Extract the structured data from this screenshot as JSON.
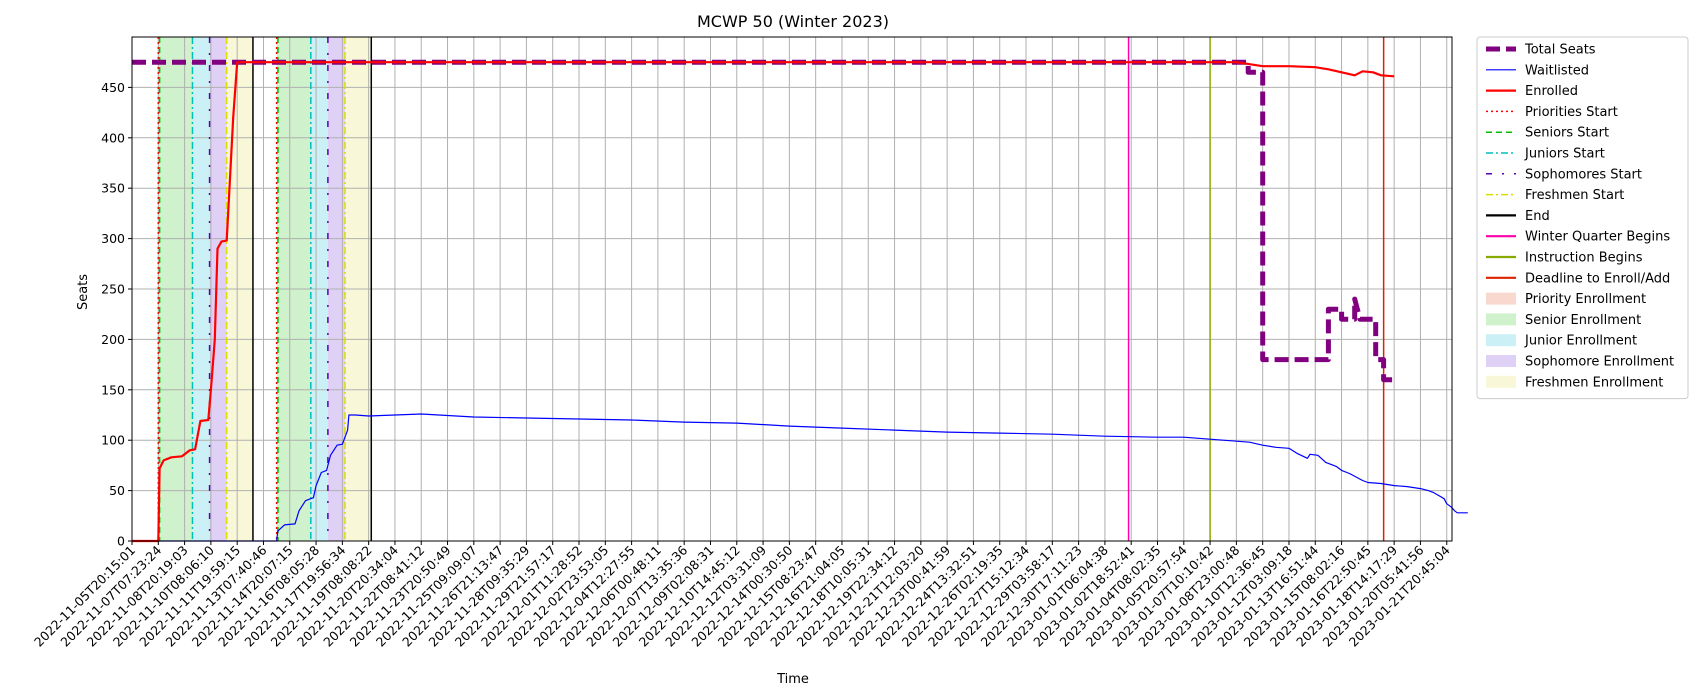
{
  "chart_data": {
    "type": "line",
    "title": "MCWP 50 (Winter 2023)",
    "xlabel": "Time",
    "ylabel": "Seats",
    "ylim": [
      0,
      500
    ],
    "yticks": [
      0,
      50,
      100,
      150,
      200,
      250,
      300,
      350,
      400,
      450
    ],
    "grid": true,
    "legend_position": "outside-right",
    "x_tick_labels": [
      "2022-11-05T20:15:01",
      "2022-11-07T07:23:24",
      "2022-11-08T20:19:03",
      "2022-11-10T08:06:10",
      "2022-11-11T19:59:15",
      "2022-11-13T07:40:46",
      "2022-11-14T20:07:15",
      "2022-11-16T08:05:28",
      "2022-11-17T19:56:34",
      "2022-11-19T08:08:22",
      "2022-11-20T20:34:04",
      "2022-11-22T08:41:12",
      "2022-11-23T20:50:49",
      "2022-11-25T09:09:07",
      "2022-11-26T21:13:47",
      "2022-11-28T09:35:29",
      "2022-11-29T21:57:17",
      "2022-12-01T11:28:52",
      "2022-12-02T23:53:05",
      "2022-12-04T12:27:55",
      "2022-12-06T00:48:11",
      "2022-12-07T13:35:36",
      "2022-12-09T02:08:31",
      "2022-12-10T14:45:12",
      "2022-12-12T03:31:09",
      "2022-12-14T00:30:50",
      "2022-12-15T08:23:47",
      "2022-12-16T21:04:05",
      "2022-12-18T10:05:31",
      "2022-12-19T22:34:12",
      "2022-12-21T12:03:20",
      "2022-12-23T00:41:59",
      "2022-12-24T13:32:51",
      "2022-12-26T02:19:35",
      "2022-12-27T15:12:34",
      "2022-12-29T03:58:17",
      "2022-12-30T17:11:23",
      "2023-01-01T06:04:38",
      "2023-01-02T18:52:41",
      "2023-01-04T08:02:35",
      "2023-01-05T20:57:54",
      "2023-01-07T10:10:42",
      "2023-01-08T23:00:48",
      "2023-01-10T12:36:45",
      "2023-01-12T03:09:18",
      "2023-01-13T16:51:44",
      "2023-01-15T08:02:16",
      "2023-01-16T22:50:45",
      "2023-01-18T14:17:29",
      "2023-01-20T05:41:56",
      "2023-01-21T20:45:04"
    ],
    "x_range": [
      0,
      50.2
    ],
    "series": [
      {
        "name": "Total Seats",
        "color": "#800080",
        "style": "thick-dashed",
        "points": [
          [
            0,
            475
          ],
          [
            42.45,
            475
          ],
          [
            42.45,
            465
          ],
          [
            43.0,
            465
          ],
          [
            43.0,
            180
          ],
          [
            45.5,
            180
          ],
          [
            45.5,
            230
          ],
          [
            46.0,
            230
          ],
          [
            46.0,
            220
          ],
          [
            46.5,
            220
          ],
          [
            46.5,
            240
          ],
          [
            46.7,
            220
          ],
          [
            47.3,
            220
          ],
          [
            47.3,
            180
          ],
          [
            47.6,
            180
          ],
          [
            47.6,
            160
          ],
          [
            48.1,
            160
          ]
        ]
      },
      {
        "name": "Waitlisted",
        "color": "#0000ff",
        "style": "solid-thin",
        "points": [
          [
            0,
            0
          ],
          [
            5.5,
            0
          ],
          [
            5.55,
            10
          ],
          [
            5.8,
            16
          ],
          [
            6.2,
            17
          ],
          [
            6.35,
            30
          ],
          [
            6.6,
            40
          ],
          [
            6.9,
            43
          ],
          [
            7.0,
            55
          ],
          [
            7.2,
            68
          ],
          [
            7.4,
            70
          ],
          [
            7.55,
            85
          ],
          [
            7.8,
            95
          ],
          [
            8.0,
            96
          ],
          [
            8.2,
            110
          ],
          [
            8.25,
            125
          ],
          [
            8.5,
            125
          ],
          [
            9.0,
            124
          ],
          [
            10,
            125
          ],
          [
            11,
            126
          ],
          [
            13,
            123
          ],
          [
            15,
            122
          ],
          [
            17,
            121
          ],
          [
            19,
            120
          ],
          [
            21,
            118
          ],
          [
            23,
            117
          ],
          [
            25,
            114
          ],
          [
            27,
            112
          ],
          [
            29,
            110
          ],
          [
            31,
            108
          ],
          [
            33,
            107
          ],
          [
            35,
            106
          ],
          [
            37,
            104
          ],
          [
            39,
            103
          ],
          [
            40,
            103
          ],
          [
            41,
            101
          ],
          [
            41.5,
            100
          ],
          [
            42,
            99
          ],
          [
            42.5,
            98
          ],
          [
            43,
            95
          ],
          [
            43.5,
            93
          ],
          [
            44,
            92
          ],
          [
            44.3,
            87
          ],
          [
            44.7,
            82
          ],
          [
            44.8,
            86
          ],
          [
            45.1,
            85
          ],
          [
            45.4,
            78
          ],
          [
            45.8,
            74
          ],
          [
            46.0,
            70
          ],
          [
            46.3,
            67
          ],
          [
            46.8,
            60
          ],
          [
            47.0,
            58
          ],
          [
            47.5,
            57
          ],
          [
            48.0,
            55
          ],
          [
            48.5,
            54
          ],
          [
            49.0,
            52
          ],
          [
            49.3,
            50
          ],
          [
            49.5,
            48
          ],
          [
            49.7,
            45
          ],
          [
            49.9,
            42
          ],
          [
            50.0,
            37
          ],
          [
            50.1,
            35
          ],
          [
            50.2,
            33
          ],
          [
            50.3,
            30
          ],
          [
            50.4,
            28
          ],
          [
            50.8,
            28
          ]
        ]
      },
      {
        "name": "Enrolled",
        "color": "#ff0000",
        "style": "solid",
        "points": [
          [
            0,
            0
          ],
          [
            1.0,
            0
          ],
          [
            1.05,
            72
          ],
          [
            1.2,
            80
          ],
          [
            1.5,
            83
          ],
          [
            1.9,
            84
          ],
          [
            2.2,
            90
          ],
          [
            2.4,
            91
          ],
          [
            2.6,
            119
          ],
          [
            2.9,
            120
          ],
          [
            3.0,
            150
          ],
          [
            3.15,
            200
          ],
          [
            3.25,
            290
          ],
          [
            3.4,
            297
          ],
          [
            3.6,
            298
          ],
          [
            3.85,
            420
          ],
          [
            4.0,
            475
          ],
          [
            40,
            475
          ],
          [
            42,
            475
          ],
          [
            43,
            471
          ],
          [
            44,
            471
          ],
          [
            45,
            470
          ],
          [
            45.5,
            468
          ],
          [
            46.0,
            465
          ],
          [
            46.5,
            462
          ],
          [
            46.8,
            466
          ],
          [
            47.2,
            465
          ],
          [
            47.5,
            462
          ],
          [
            48,
            461
          ]
        ]
      }
    ],
    "vertical_markers": [
      {
        "name": "Priorities Start",
        "color": "#ff0000",
        "style": "dotted",
        "x": [
          1.0,
          5.5
        ]
      },
      {
        "name": "Seniors Start",
        "color": "#00bb00",
        "style": "dashed",
        "x": [
          1.05,
          5.55
        ]
      },
      {
        "name": "Juniors Start",
        "color": "#00bfbf",
        "style": "dashdot",
        "x": [
          2.3,
          6.8
        ]
      },
      {
        "name": "Sophomores Start",
        "color": "#5500bb",
        "style": "loose-dashdot",
        "x": [
          2.95,
          7.45
        ]
      },
      {
        "name": "Freshmen Start",
        "color": "#dddd00",
        "style": "dashdot",
        "x": [
          3.6,
          8.1
        ]
      },
      {
        "name": "End",
        "color": "#000000",
        "style": "solid",
        "x": [
          4.6,
          9.1
        ]
      },
      {
        "name": "Winter Quarter Begins",
        "color": "#ff00aa",
        "style": "solid",
        "x": [
          37.9
        ]
      },
      {
        "name": "Instruction Begins",
        "color": "#88aa00",
        "style": "solid",
        "x": [
          41.0
        ]
      },
      {
        "name": "Deadline to Enroll/Add",
        "color": "#dd2200",
        "style": "solid",
        "x": [
          47.6
        ]
      }
    ],
    "shaded_periods": [
      {
        "name": "Priority Enrollment",
        "color": "#f4b8a8",
        "ranges": [
          [
            1.0,
            1.05
          ],
          [
            5.5,
            5.55
          ]
        ]
      },
      {
        "name": "Senior Enrollment",
        "color": "#a8e6a0",
        "ranges": [
          [
            1.05,
            2.3
          ],
          [
            5.55,
            6.8
          ]
        ]
      },
      {
        "name": "Junior Enrollment",
        "color": "#a0e4ec",
        "ranges": [
          [
            2.3,
            2.95
          ],
          [
            6.8,
            7.45
          ]
        ]
      },
      {
        "name": "Sophomore Enrollment",
        "color": "#c4acee",
        "ranges": [
          [
            2.95,
            3.6
          ],
          [
            7.45,
            8.1
          ]
        ]
      },
      {
        "name": "Freshmen Enrollment",
        "color": "#f2f2b8",
        "ranges": [
          [
            3.6,
            4.6
          ],
          [
            8.1,
            9.1
          ]
        ]
      }
    ],
    "legend": [
      {
        "label": "Total Seats",
        "kind": "line",
        "color": "#800080",
        "style": "thick-dashed"
      },
      {
        "label": "Waitlisted",
        "kind": "line",
        "color": "#0000ff",
        "style": "solid-thin"
      },
      {
        "label": "Enrolled",
        "kind": "line",
        "color": "#ff0000",
        "style": "solid"
      },
      {
        "label": "Priorities Start",
        "kind": "line",
        "color": "#ff0000",
        "style": "dotted"
      },
      {
        "label": "Seniors Start",
        "kind": "line",
        "color": "#00bb00",
        "style": "dashed"
      },
      {
        "label": "Juniors Start",
        "kind": "line",
        "color": "#00bfbf",
        "style": "dashdot"
      },
      {
        "label": "Sophomores Start",
        "kind": "line",
        "color": "#5500bb",
        "style": "loose-dashdot"
      },
      {
        "label": "Freshmen Start",
        "kind": "line",
        "color": "#dddd00",
        "style": "dashdot"
      },
      {
        "label": "End",
        "kind": "line",
        "color": "#000000",
        "style": "solid"
      },
      {
        "label": "Winter Quarter Begins",
        "kind": "line",
        "color": "#ff00aa",
        "style": "solid"
      },
      {
        "label": "Instruction Begins",
        "kind": "line",
        "color": "#88aa00",
        "style": "solid"
      },
      {
        "label": "Deadline to Enroll/Add",
        "kind": "line",
        "color": "#dd2200",
        "style": "solid"
      },
      {
        "label": "Priority Enrollment",
        "kind": "patch",
        "color": "#f4b8a8"
      },
      {
        "label": "Senior Enrollment",
        "kind": "patch",
        "color": "#a8e6a0"
      },
      {
        "label": "Junior Enrollment",
        "kind": "patch",
        "color": "#a0e4ec"
      },
      {
        "label": "Sophomore Enrollment",
        "kind": "patch",
        "color": "#c4acee"
      },
      {
        "label": "Freshmen Enrollment",
        "kind": "patch",
        "color": "#f2f2b8"
      }
    ]
  }
}
